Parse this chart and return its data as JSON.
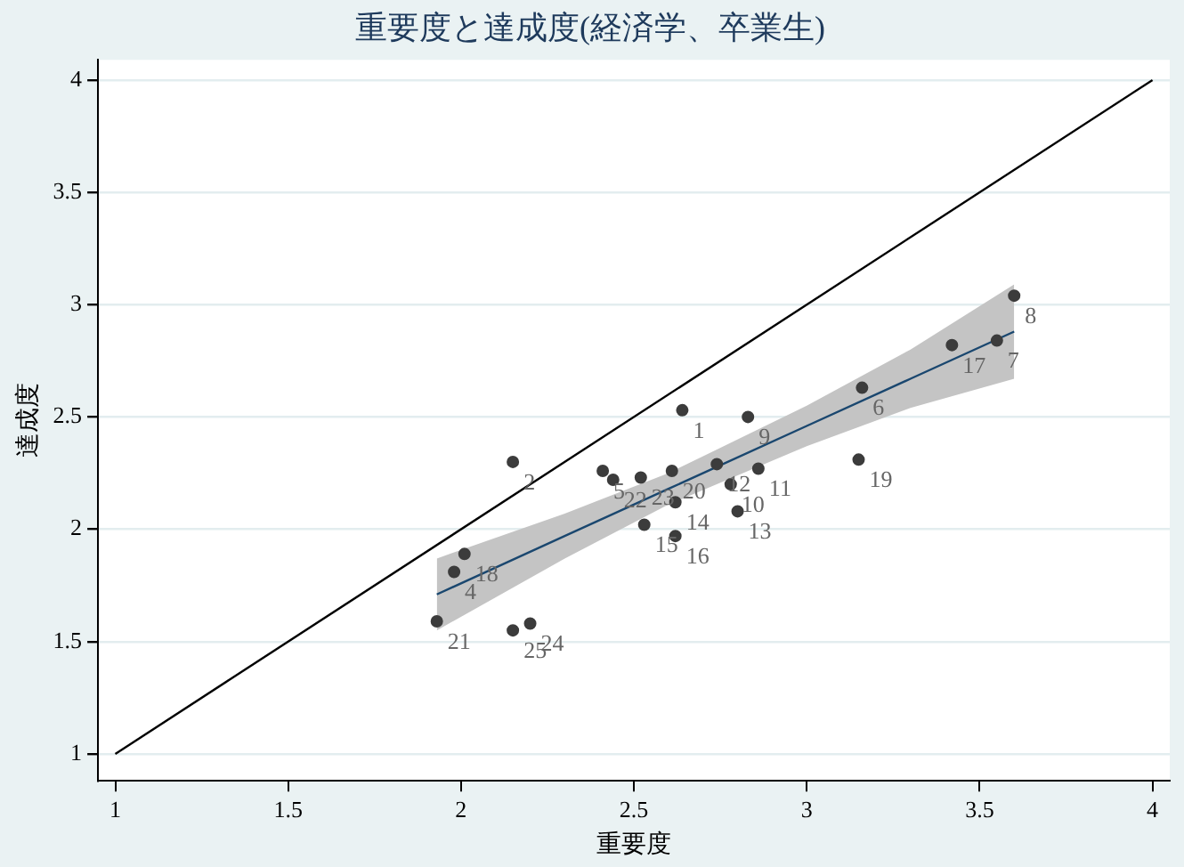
{
  "chart_data": {
    "type": "scatter",
    "title": "重要度と達成度(経済学、卒業生)",
    "xlabel": "重要度",
    "ylabel": "達成度",
    "xlim": [
      0.95,
      4.05
    ],
    "ylim": [
      0.88,
      4.09
    ],
    "xticks": [
      1,
      1.5,
      2,
      2.5,
      3,
      3.5,
      4
    ],
    "yticks": [
      1,
      1.5,
      2,
      2.5,
      3,
      3.5,
      4
    ],
    "grid": "y",
    "legend": false,
    "series": [
      {
        "type": "line",
        "marker": "none",
        "color": "#000000",
        "x": [
          1,
          4
        ],
        "values": [
          1,
          4
        ]
      },
      {
        "type": "line",
        "marker": "none",
        "color": "#1a476f",
        "x": [
          1.93,
          2.3,
          2.6,
          3.0,
          3.3,
          3.6
        ],
        "values": [
          1.71,
          1.97,
          2.18,
          2.46,
          2.67,
          2.88
        ],
        "lower": [
          1.55,
          1.87,
          2.11,
          2.37,
          2.54,
          2.67
        ],
        "upper": [
          1.87,
          2.07,
          2.25,
          2.55,
          2.8,
          3.09
        ]
      },
      {
        "marker": "circle",
        "color": "#3c3c3c",
        "x": [
          2.64,
          2.15,
          1.98,
          2.41,
          3.16,
          3.55,
          3.6,
          2.83,
          2.78,
          2.86,
          2.74,
          2.8,
          2.62,
          2.53,
          2.62,
          3.42,
          2.01,
          3.15,
          2.61,
          1.93,
          2.44,
          2.52,
          2.2,
          2.15
        ],
        "values": [
          2.53,
          2.3,
          1.81,
          2.26,
          2.63,
          2.84,
          3.04,
          2.5,
          2.2,
          2.27,
          2.29,
          2.08,
          2.12,
          2.02,
          1.97,
          2.82,
          1.89,
          2.31,
          2.26,
          1.59,
          2.22,
          2.23,
          1.58,
          1.55
        ]
      }
    ],
    "annotations": [
      {
        "text": "1",
        "x": 2.64,
        "y": 2.53
      },
      {
        "text": "2",
        "x": 2.15,
        "y": 2.3
      },
      {
        "text": "4",
        "x": 1.98,
        "y": 1.81
      },
      {
        "text": "5",
        "x": 2.41,
        "y": 2.26
      },
      {
        "text": "6",
        "x": 3.16,
        "y": 2.63
      },
      {
        "text": "7",
        "x": 3.55,
        "y": 2.84
      },
      {
        "text": "8",
        "x": 3.6,
        "y": 3.04
      },
      {
        "text": "9",
        "x": 2.83,
        "y": 2.5
      },
      {
        "text": "10",
        "x": 2.78,
        "y": 2.2
      },
      {
        "text": "11",
        "x": 2.86,
        "y": 2.27
      },
      {
        "text": "12",
        "x": 2.74,
        "y": 2.29
      },
      {
        "text": "13",
        "x": 2.8,
        "y": 2.08
      },
      {
        "text": "14",
        "x": 2.62,
        "y": 2.12
      },
      {
        "text": "15",
        "x": 2.53,
        "y": 2.02
      },
      {
        "text": "16",
        "x": 2.62,
        "y": 1.97
      },
      {
        "text": "17",
        "x": 3.42,
        "y": 2.82
      },
      {
        "text": "18",
        "x": 2.01,
        "y": 1.89
      },
      {
        "text": "19",
        "x": 3.15,
        "y": 2.31
      },
      {
        "text": "20",
        "x": 2.61,
        "y": 2.26
      },
      {
        "text": "21",
        "x": 1.93,
        "y": 1.59
      },
      {
        "text": "22",
        "x": 2.44,
        "y": 2.22
      },
      {
        "text": "23",
        "x": 2.52,
        "y": 2.23
      },
      {
        "text": "24",
        "x": 2.2,
        "y": 1.58
      },
      {
        "text": "25",
        "x": 2.15,
        "y": 1.55
      }
    ]
  }
}
